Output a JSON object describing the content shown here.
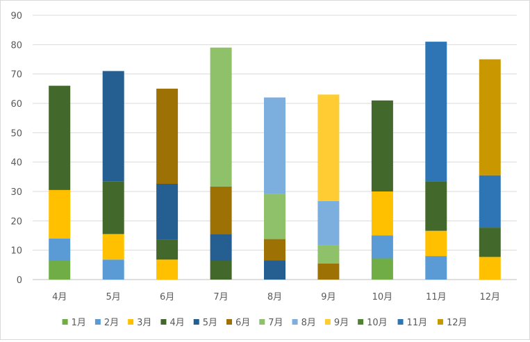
{
  "colors": {
    "gridline": "#d9d9d9",
    "axis": "#bfbfbf",
    "label": "#595959"
  },
  "chart_data": {
    "type": "bar",
    "stacked": true,
    "categories": [
      "4月",
      "5月",
      "6月",
      "7月",
      "8月",
      "9月",
      "10月",
      "11月",
      "12月"
    ],
    "ylim": [
      0,
      90
    ],
    "yticks": [
      0,
      10,
      20,
      30,
      40,
      50,
      60,
      70,
      80,
      90
    ],
    "grid": true,
    "legend_position": "bottom",
    "series": [
      {
        "name": "1月",
        "color": "#70ad47",
        "values": [
          6.5,
          0,
          0,
          0,
          0,
          0,
          7.2,
          0,
          0
        ]
      },
      {
        "name": "2月",
        "color": "#5b9bd5",
        "values": [
          7.5,
          6.8,
          0,
          0,
          0,
          0,
          7.8,
          8,
          0
        ]
      },
      {
        "name": "3月",
        "color": "#ffc000",
        "values": [
          16.5,
          8.7,
          6.8,
          0,
          0,
          0,
          15,
          8.6,
          7.7
        ]
      },
      {
        "name": "4月",
        "color": "#43682b",
        "values": [
          35.5,
          18,
          6.8,
          6.5,
          0,
          0,
          31,
          16.8,
          10
        ]
      },
      {
        "name": "5月",
        "color": "#255e91",
        "values": [
          0,
          37.5,
          19,
          9,
          6.5,
          0,
          0,
          0,
          0
        ]
      },
      {
        "name": "6月",
        "color": "#9e7104",
        "values": [
          0,
          0,
          32.4,
          16.2,
          7.3,
          5.5,
          0,
          0,
          0
        ]
      },
      {
        "name": "7月",
        "color": "#8fc16a",
        "values": [
          0,
          0,
          0,
          47.3,
          15.4,
          6.1,
          0,
          0,
          0
        ]
      },
      {
        "name": "8月",
        "color": "#7cafdd",
        "values": [
          0,
          0,
          0,
          0,
          32.8,
          15.1,
          0,
          0,
          0
        ]
      },
      {
        "name": "9月",
        "color": "#ffcd33",
        "values": [
          0,
          0,
          0,
          0,
          0,
          36.3,
          0,
          0,
          0
        ]
      },
      {
        "name": "10月",
        "color": "#548235",
        "values": [
          0,
          0,
          0,
          0,
          0,
          0,
          0,
          0,
          0
        ]
      },
      {
        "name": "11月",
        "color": "#2e75b6",
        "values": [
          0,
          0,
          0,
          0,
          0,
          0,
          0,
          47.6,
          17.8
        ]
      },
      {
        "name": "12月",
        "color": "#c99700",
        "values": [
          0,
          0,
          0,
          0,
          0,
          0,
          0,
          0,
          39.5
        ]
      }
    ]
  }
}
